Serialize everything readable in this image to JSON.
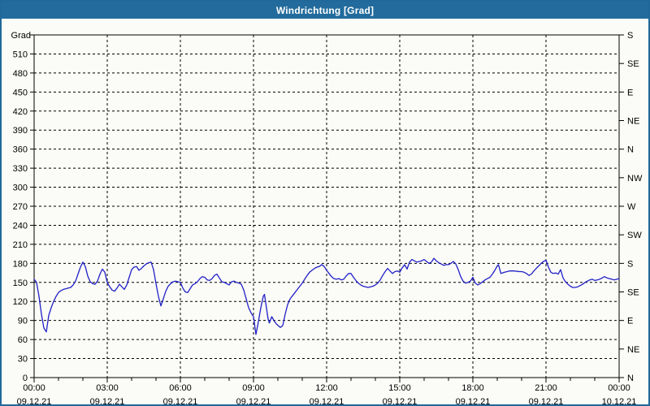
{
  "window": {
    "title": "Windrichtung [Grad]"
  },
  "colors": {
    "frame": "#21689A",
    "titlebar_bg": "#226B9C",
    "titlebar_text": "#FFFFFF",
    "background": "#FBFBF7",
    "grid": "#000000",
    "axis": "#000000",
    "line": "#2020C8"
  },
  "chart_data": {
    "type": "line",
    "title": "Windrichtung [Grad]",
    "ylabel": "Grad",
    "ylim": [
      0,
      540
    ],
    "ytick_step": 30,
    "yticks_left_labels": [
      "0",
      "30",
      "60",
      "90",
      "120",
      "150",
      "180",
      "210",
      "240",
      "270",
      "300",
      "330",
      "360",
      "390",
      "420",
      "450",
      "480",
      "510"
    ],
    "right_axis": {
      "degree_step": 45,
      "labels_top_to_bottom": [
        "S",
        "SE",
        "E",
        "NE",
        "N",
        "NW",
        "W",
        "SW",
        "S",
        "SE",
        "E",
        "NE",
        "N"
      ]
    },
    "x_axis": {
      "hours_span": 24,
      "minor_tick_hours": 1,
      "gridline_hours": 3,
      "ticks": [
        {
          "hour": 0,
          "time": "00:00",
          "date": "09.12.21"
        },
        {
          "hour": 3,
          "time": "03:00",
          "date": "09.12.21"
        },
        {
          "hour": 6,
          "time": "06:00",
          "date": "09.12.21"
        },
        {
          "hour": 9,
          "time": "09:00",
          "date": "09.12.21"
        },
        {
          "hour": 12,
          "time": "12:00",
          "date": "09.12.21"
        },
        {
          "hour": 15,
          "time": "15:00",
          "date": "09.12.21"
        },
        {
          "hour": 18,
          "time": "18:00",
          "date": "09.12.21"
        },
        {
          "hour": 21,
          "time": "21:00",
          "date": "09.12.21"
        },
        {
          "hour": 24,
          "time": "00:00",
          "date": "10.12.21"
        }
      ]
    },
    "grid": {
      "horizontal": true,
      "vertical": true,
      "style": "dashed"
    },
    "series": [
      {
        "name": "Windrichtung",
        "points": [
          [
            0,
            155
          ],
          [
            0.1,
            150
          ],
          [
            0.2,
            128
          ],
          [
            0.3,
            100
          ],
          [
            0.4,
            78
          ],
          [
            0.5,
            72
          ],
          [
            0.6,
            98
          ],
          [
            0.7,
            110
          ],
          [
            0.8,
            120
          ],
          [
            0.9,
            128
          ],
          [
            1.0,
            134
          ],
          [
            1.1,
            137
          ],
          [
            1.2,
            139
          ],
          [
            1.3,
            140
          ],
          [
            1.4,
            141
          ],
          [
            1.5,
            142
          ],
          [
            1.6,
            146
          ],
          [
            1.7,
            152
          ],
          [
            1.8,
            163
          ],
          [
            1.9,
            174
          ],
          [
            2.0,
            182
          ],
          [
            2.1,
            175
          ],
          [
            2.2,
            160
          ],
          [
            2.3,
            151
          ],
          [
            2.4,
            148
          ],
          [
            2.5,
            147
          ],
          [
            2.6,
            152
          ],
          [
            2.7,
            163
          ],
          [
            2.8,
            171
          ],
          [
            2.9,
            166
          ],
          [
            3.0,
            150
          ],
          [
            3.1,
            143
          ],
          [
            3.2,
            138
          ],
          [
            3.3,
            136
          ],
          [
            3.4,
            141
          ],
          [
            3.5,
            147
          ],
          [
            3.6,
            143
          ],
          [
            3.7,
            139
          ],
          [
            3.8,
            146
          ],
          [
            3.9,
            158
          ],
          [
            4.0,
            170
          ],
          [
            4.1,
            174
          ],
          [
            4.2,
            175
          ],
          [
            4.3,
            169
          ],
          [
            4.4,
            172
          ],
          [
            4.5,
            176
          ],
          [
            4.6,
            179
          ],
          [
            4.7,
            181
          ],
          [
            4.8,
            182
          ],
          [
            4.9,
            170
          ],
          [
            5.0,
            148
          ],
          [
            5.1,
            128
          ],
          [
            5.2,
            113
          ],
          [
            5.3,
            124
          ],
          [
            5.4,
            136
          ],
          [
            5.5,
            144
          ],
          [
            5.6,
            148
          ],
          [
            5.7,
            151
          ],
          [
            5.8,
            152
          ],
          [
            5.9,
            151
          ],
          [
            6.0,
            150
          ],
          [
            6.1,
            141
          ],
          [
            6.2,
            135
          ],
          [
            6.3,
            134
          ],
          [
            6.4,
            140
          ],
          [
            6.5,
            146
          ],
          [
            6.6,
            148
          ],
          [
            6.7,
            151
          ],
          [
            6.8,
            156
          ],
          [
            6.9,
            159
          ],
          [
            7.0,
            158
          ],
          [
            7.1,
            154
          ],
          [
            7.2,
            153
          ],
          [
            7.3,
            156
          ],
          [
            7.4,
            161
          ],
          [
            7.5,
            163
          ],
          [
            7.6,
            157
          ],
          [
            7.7,
            151
          ],
          [
            7.8,
            150
          ],
          [
            7.9,
            148
          ],
          [
            8.0,
            146
          ],
          [
            8.1,
            151
          ],
          [
            8.2,
            152
          ],
          [
            8.3,
            150
          ],
          [
            8.4,
            149
          ],
          [
            8.5,
            147
          ],
          [
            8.6,
            138
          ],
          [
            8.7,
            124
          ],
          [
            8.8,
            110
          ],
          [
            8.9,
            102
          ],
          [
            9.0,
            96
          ],
          [
            9.1,
            68
          ],
          [
            9.2,
            88
          ],
          [
            9.3,
            110
          ],
          [
            9.4,
            128
          ],
          [
            9.45,
            131
          ],
          [
            9.5,
            118
          ],
          [
            9.6,
            92
          ],
          [
            9.65,
            86
          ],
          [
            9.75,
            96
          ],
          [
            9.85,
            89
          ],
          [
            9.95,
            84
          ],
          [
            10.1,
            79
          ],
          [
            10.2,
            82
          ],
          [
            10.3,
            100
          ],
          [
            10.4,
            115
          ],
          [
            10.5,
            124
          ],
          [
            10.6,
            129
          ],
          [
            10.7,
            134
          ],
          [
            10.8,
            139
          ],
          [
            10.9,
            144
          ],
          [
            11.0,
            149
          ],
          [
            11.1,
            155
          ],
          [
            11.2,
            161
          ],
          [
            11.3,
            166
          ],
          [
            11.4,
            169
          ],
          [
            11.5,
            172
          ],
          [
            11.6,
            174
          ],
          [
            11.7,
            175
          ],
          [
            11.8,
            178
          ],
          [
            11.9,
            175
          ],
          [
            12.0,
            169
          ],
          [
            12.1,
            164
          ],
          [
            12.2,
            159
          ],
          [
            12.3,
            156
          ],
          [
            12.4,
            155
          ],
          [
            12.5,
            156
          ],
          [
            12.6,
            154
          ],
          [
            12.7,
            155
          ],
          [
            12.8,
            160
          ],
          [
            12.9,
            164
          ],
          [
            13.0,
            164
          ],
          [
            13.1,
            158
          ],
          [
            13.2,
            153
          ],
          [
            13.3,
            149
          ],
          [
            13.4,
            146
          ],
          [
            13.5,
            144
          ],
          [
            13.6,
            143
          ],
          [
            13.7,
            142
          ],
          [
            13.8,
            143
          ],
          [
            13.9,
            144
          ],
          [
            14.0,
            146
          ],
          [
            14.1,
            149
          ],
          [
            14.2,
            154
          ],
          [
            14.3,
            161
          ],
          [
            14.4,
            167
          ],
          [
            14.5,
            172
          ],
          [
            14.6,
            168
          ],
          [
            14.7,
            164
          ],
          [
            14.8,
            167
          ],
          [
            14.9,
            168
          ],
          [
            15.0,
            166
          ],
          [
            15.1,
            173
          ],
          [
            15.2,
            178
          ],
          [
            15.3,
            171
          ],
          [
            15.4,
            182
          ],
          [
            15.5,
            186
          ],
          [
            15.6,
            184
          ],
          [
            15.7,
            182
          ],
          [
            15.8,
            183
          ],
          [
            15.9,
            184
          ],
          [
            16.0,
            186
          ],
          [
            16.1,
            183
          ],
          [
            16.2,
            180
          ],
          [
            16.3,
            182
          ],
          [
            16.4,
            188
          ],
          [
            16.5,
            184
          ],
          [
            16.6,
            181
          ],
          [
            16.7,
            179
          ],
          [
            16.8,
            177
          ],
          [
            16.9,
            178
          ],
          [
            17.0,
            178
          ],
          [
            17.1,
            180
          ],
          [
            17.2,
            183
          ],
          [
            17.3,
            179
          ],
          [
            17.4,
            170
          ],
          [
            17.5,
            159
          ],
          [
            17.6,
            152
          ],
          [
            17.7,
            149
          ],
          [
            17.8,
            150
          ],
          [
            17.9,
            152
          ],
          [
            18.0,
            158
          ],
          [
            18.1,
            149
          ],
          [
            18.2,
            146
          ],
          [
            18.3,
            148
          ],
          [
            18.4,
            151
          ],
          [
            18.5,
            154
          ],
          [
            18.6,
            156
          ],
          [
            18.7,
            158
          ],
          [
            18.8,
            163
          ],
          [
            18.9,
            169
          ],
          [
            19.0,
            176
          ],
          [
            19.05,
            178
          ],
          [
            19.15,
            164
          ],
          [
            19.3,
            166
          ],
          [
            19.5,
            168
          ],
          [
            19.7,
            168
          ],
          [
            19.9,
            167
          ],
          [
            20.0,
            167
          ],
          [
            20.1,
            166
          ],
          [
            20.2,
            164
          ],
          [
            20.3,
            161
          ],
          [
            20.4,
            163
          ],
          [
            20.5,
            168
          ],
          [
            20.6,
            172
          ],
          [
            20.7,
            176
          ],
          [
            20.8,
            180
          ],
          [
            20.9,
            183
          ],
          [
            21.0,
            185
          ],
          [
            21.1,
            174
          ],
          [
            21.2,
            166
          ],
          [
            21.3,
            164
          ],
          [
            21.4,
            165
          ],
          [
            21.5,
            163
          ],
          [
            21.6,
            170
          ],
          [
            21.7,
            157
          ],
          [
            21.8,
            151
          ],
          [
            21.9,
            147
          ],
          [
            22.0,
            144
          ],
          [
            22.1,
            142
          ],
          [
            22.2,
            142
          ],
          [
            22.3,
            143
          ],
          [
            22.4,
            145
          ],
          [
            22.5,
            147
          ],
          [
            22.6,
            150
          ],
          [
            22.7,
            152
          ],
          [
            22.8,
            154
          ],
          [
            22.9,
            155
          ],
          [
            23.0,
            153
          ],
          [
            23.1,
            154
          ],
          [
            23.2,
            155
          ],
          [
            23.3,
            157
          ],
          [
            23.4,
            159
          ],
          [
            23.5,
            157
          ],
          [
            23.6,
            156
          ],
          [
            23.7,
            155
          ],
          [
            23.8,
            154
          ],
          [
            23.9,
            155
          ],
          [
            24.0,
            156
          ]
        ]
      }
    ]
  }
}
